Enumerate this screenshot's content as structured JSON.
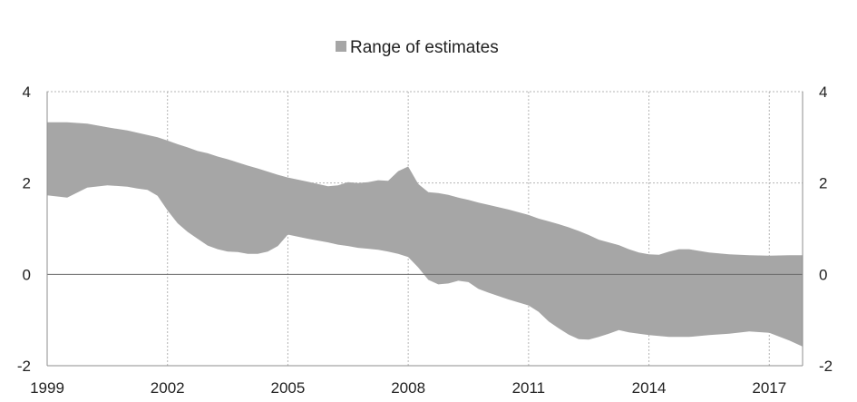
{
  "chart_data": {
    "type": "area",
    "legend": {
      "label": "Range of estimates",
      "position": "top-center",
      "color": "#a6a6a6"
    },
    "x_ticks": [
      "1999",
      "2002",
      "2005",
      "2008",
      "2011",
      "2014",
      "2017"
    ],
    "x_range": [
      1999.0,
      2017.83
    ],
    "y_ticks_left": [
      "4",
      "2",
      "0",
      "-2"
    ],
    "y_ticks_right": [
      "4",
      "2",
      "0",
      "-2"
    ],
    "ylim": [
      -2,
      4
    ],
    "grid": true,
    "series": [
      {
        "name": "Range of estimates",
        "band": true,
        "x": [
          1999.0,
          1999.5,
          2000.0,
          2000.5,
          2001.0,
          2001.25,
          2001.5,
          2001.75,
          2002.0,
          2002.25,
          2002.5,
          2002.75,
          2003.0,
          2003.25,
          2003.5,
          2003.75,
          2004.0,
          2004.25,
          2004.5,
          2004.75,
          2005.0,
          2005.5,
          2006.0,
          2006.25,
          2006.5,
          2006.75,
          2007.0,
          2007.25,
          2007.5,
          2007.75,
          2008.0,
          2008.25,
          2008.5,
          2008.75,
          2009.0,
          2009.25,
          2009.5,
          2009.75,
          2010.0,
          2010.5,
          2011.0,
          2011.25,
          2011.5,
          2011.75,
          2012.0,
          2012.25,
          2012.5,
          2012.75,
          2013.0,
          2013.25,
          2013.5,
          2013.75,
          2014.0,
          2014.25,
          2014.5,
          2014.75,
          2015.0,
          2015.5,
          2016.0,
          2016.5,
          2017.0,
          2017.5,
          2017.83
        ],
        "upper": [
          3.33,
          3.33,
          3.3,
          3.22,
          3.15,
          3.1,
          3.05,
          3.0,
          2.93,
          2.85,
          2.78,
          2.7,
          2.65,
          2.58,
          2.52,
          2.45,
          2.38,
          2.32,
          2.25,
          2.18,
          2.12,
          2.03,
          1.93,
          1.95,
          2.02,
          2.0,
          2.02,
          2.06,
          2.05,
          2.26,
          2.36,
          1.98,
          1.8,
          1.78,
          1.74,
          1.68,
          1.63,
          1.57,
          1.52,
          1.42,
          1.3,
          1.22,
          1.16,
          1.1,
          1.03,
          0.95,
          0.86,
          0.76,
          0.7,
          0.64,
          0.55,
          0.48,
          0.44,
          0.43,
          0.5,
          0.55,
          0.55,
          0.48,
          0.44,
          0.42,
          0.41,
          0.42,
          0.42
        ],
        "lower": [
          1.73,
          1.68,
          1.9,
          1.95,
          1.92,
          1.88,
          1.85,
          1.72,
          1.4,
          1.12,
          0.93,
          0.78,
          0.63,
          0.55,
          0.5,
          0.49,
          0.45,
          0.45,
          0.5,
          0.62,
          0.87,
          0.78,
          0.7,
          0.65,
          0.62,
          0.58,
          0.56,
          0.54,
          0.5,
          0.45,
          0.38,
          0.15,
          -0.12,
          -0.22,
          -0.2,
          -0.14,
          -0.17,
          -0.32,
          -0.4,
          -0.55,
          -0.68,
          -0.82,
          -1.03,
          -1.18,
          -1.32,
          -1.42,
          -1.43,
          -1.37,
          -1.3,
          -1.22,
          -1.27,
          -1.3,
          -1.33,
          -1.35,
          -1.37,
          -1.37,
          -1.37,
          -1.33,
          -1.3,
          -1.25,
          -1.28,
          -1.45,
          -1.58
        ]
      }
    ]
  }
}
